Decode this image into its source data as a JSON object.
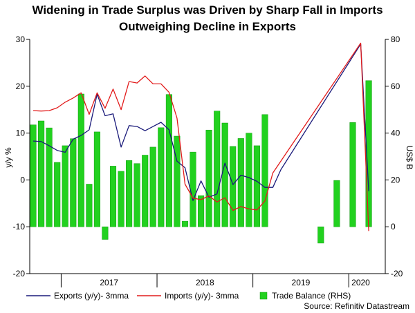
{
  "title": {
    "line1": "Widening in Trade Surplus was Driven by Sharp Fall in Imports",
    "line2": "Outweighing Decline in Exports"
  },
  "source": "Source: Refinitiv Datastream",
  "colors": {
    "exports": "#1a1a7a",
    "imports": "#e21b1b",
    "bars": "#22d11f",
    "bars_edge": "#119a0f",
    "axis": "#000000"
  },
  "chart_data": {
    "type": "bar+line",
    "title": "Widening in Trade Surplus was Driven by Sharp Fall in Imports Outweighing Decline in Exports",
    "ylabel_left": "y/y %",
    "ylabel_right": "US$ B",
    "ylim_left": [
      -20,
      30
    ],
    "ylim_right": [
      -20,
      80
    ],
    "yticks_left": [
      -20,
      -10,
      0,
      10,
      20,
      30
    ],
    "yticks_right": [
      -20,
      0,
      20,
      40,
      60,
      80
    ],
    "yticks_left_labels": [
      "-20",
      "-10",
      "0",
      "10",
      "20",
      "30"
    ],
    "yticks_right_labels": [
      "-20",
      "0",
      "20",
      "40",
      "60",
      "80"
    ],
    "x_years": [
      "2017",
      "2018",
      "2019",
      "2020"
    ],
    "months": [
      "2016-09",
      "2016-10",
      "2016-11",
      "2016-12",
      "2017-01",
      "2017-02",
      "2017-03",
      "2017-04",
      "2017-05",
      "2017-06",
      "2017-07",
      "2017-08",
      "2017-09",
      "2017-10",
      "2017-11",
      "2017-12",
      "2018-01",
      "2018-02",
      "2018-03",
      "2018-04",
      "2018-05",
      "2018-06",
      "2018-07",
      "2018-08",
      "2018-09",
      "2018-10",
      "2018-11",
      "2018-12",
      "2019-01",
      "2019-02",
      "2019-03",
      "2019-04",
      "2019-05",
      "2019-06",
      "2019-07",
      "2019-08",
      "2019-09",
      "2019-10",
      "2019-11",
      "2019-12",
      "2020-01",
      "2020-02",
      "2020-03"
    ],
    "series": [
      {
        "name": "Exports (y/y)- 3mma",
        "type": "line",
        "axis": "left",
        "values": [
          8.3,
          8.2,
          7.3,
          6.3,
          5.9,
          8.7,
          9.5,
          10.7,
          18.3,
          13.7,
          14.1,
          7.0,
          11.6,
          11.4,
          10.5,
          11.4,
          12.3,
          10.7,
          4.0,
          2.6,
          -4.4,
          -0.2,
          -3.7,
          -3.0,
          3.6,
          -1.0,
          1.0,
          0.5,
          -0.3,
          -1.6,
          -1.6,
          2.2,
          null,
          null,
          null,
          null,
          null,
          null,
          null,
          null,
          null,
          29.0,
          -2.4
        ]
      },
      {
        "name": "Imports (y/y)- 3mma",
        "type": "line",
        "axis": "left",
        "values": [
          14.8,
          14.7,
          14.8,
          15.4,
          16.6,
          17.5,
          18.6,
          14.0,
          18.6,
          15.3,
          19.4,
          15.0,
          21.0,
          20.7,
          22.2,
          20.5,
          20.5,
          18.7,
          13.2,
          -0.9,
          -3.9,
          -4.2,
          -3.4,
          -4.7,
          -3.8,
          -6.5,
          -5.7,
          -6.2,
          -6.4,
          -4.5,
          1.5,
          null,
          null,
          null,
          null,
          null,
          null,
          null,
          null,
          null,
          null,
          29.2,
          -10.9
        ]
      },
      {
        "name": "Trade Balance (RHS)",
        "type": "bar",
        "axis": "right",
        "values": [
          43.5,
          45.2,
          42.2,
          27.5,
          34.6,
          37.6,
          56.7,
          18.2,
          40.5,
          -5.4,
          25.9,
          23.7,
          28.3,
          27.0,
          30.6,
          34.0,
          42.3,
          56.5,
          38.7,
          2.4,
          31.9,
          13.3,
          41.3,
          49.4,
          44.3,
          34.3,
          37.7,
          40.0,
          34.6,
          47.9,
          null,
          null,
          null,
          null,
          null,
          null,
          -7.0,
          null,
          19.8,
          null,
          44.5,
          null,
          62.4
        ]
      }
    ],
    "legend": [
      "Exports (y/y)- 3mma",
      "Imports (y/y)- 3mma",
      "Trade Balance (RHS)"
    ],
    "legend_position": "bottom",
    "grid": false
  }
}
